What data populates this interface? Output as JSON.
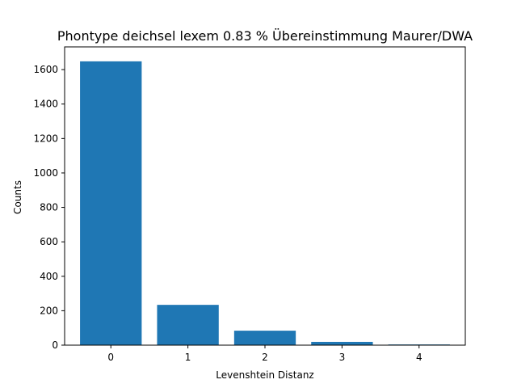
{
  "chart_data": {
    "type": "bar",
    "title": "Phontype deichsel lexem 0.83 % Übereinstimmung Maurer/DWA",
    "xlabel": "Levenshtein Distanz",
    "ylabel": "Counts",
    "categories": [
      "0",
      "1",
      "2",
      "3",
      "4"
    ],
    "values": [
      1648,
      234,
      84,
      19,
      4
    ],
    "ylim": [
      0,
      1732
    ],
    "yticks": [
      0,
      200,
      400,
      600,
      800,
      1000,
      1200,
      1400,
      1600
    ],
    "grid": false,
    "bar_color": "#1f77b4"
  }
}
